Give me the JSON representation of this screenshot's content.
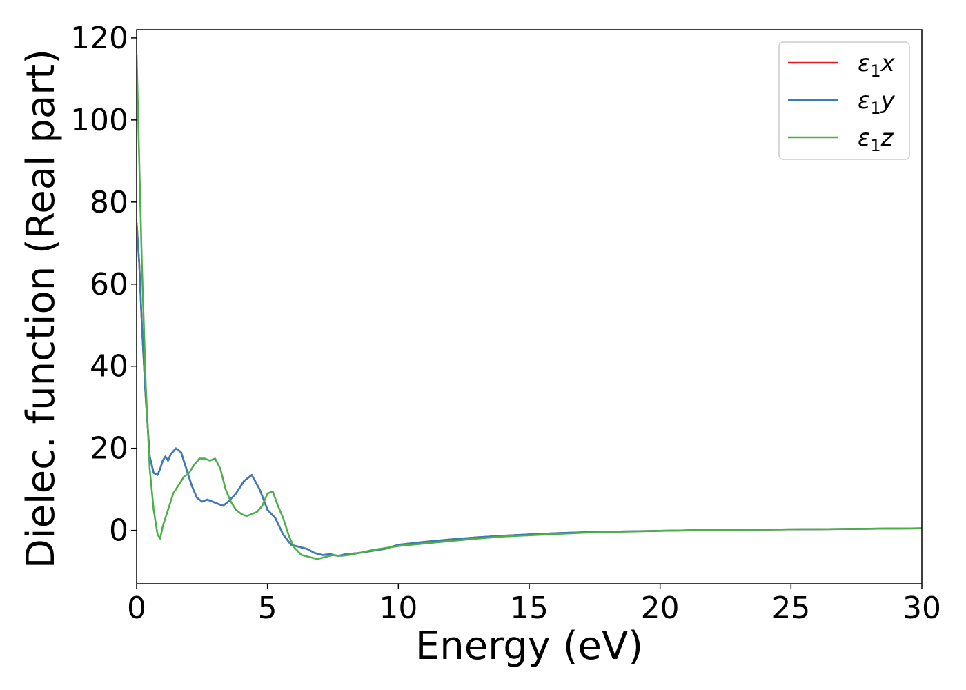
{
  "chart_data": {
    "type": "line",
    "title": "",
    "xlabel": "Energy (eV)",
    "ylabel": "Dielec. function (Real part)",
    "xlim": [
      0,
      30
    ],
    "ylim": [
      -13,
      122
    ],
    "xticks": [
      0,
      5,
      10,
      15,
      20,
      25,
      30
    ],
    "yticks": [
      0,
      20,
      40,
      60,
      80,
      100,
      120
    ],
    "grid": false,
    "legend_position": "top-right",
    "series": [
      {
        "name": "ε1x",
        "legend_base": "ε",
        "legend_sub": "1",
        "legend_var": "x",
        "color": "#e41a1c",
        "x": [
          0,
          0.1,
          0.2,
          0.35,
          0.5,
          0.65,
          0.8,
          0.9,
          1.0,
          1.1,
          1.2,
          1.3,
          1.5,
          1.7,
          1.9,
          2.1,
          2.3,
          2.5,
          2.7,
          2.9,
          3.1,
          3.3,
          3.5,
          3.8,
          4.1,
          4.4,
          4.7,
          5.0,
          5.3,
          5.6,
          5.9,
          6.2,
          6.5,
          6.8,
          7.1,
          7.4,
          7.7,
          8.0,
          8.5,
          9.0,
          9.5,
          10.0,
          11.0,
          12.0,
          13.0,
          14.0,
          15.0,
          16.0,
          17.0,
          18.0,
          20.0,
          22.0,
          24.0,
          26.0,
          28.0,
          30.0
        ],
        "y": [
          75,
          65,
          50,
          32,
          18,
          14,
          13.5,
          15,
          17,
          18,
          17,
          18.5,
          20,
          19,
          15,
          11,
          8,
          7,
          7.5,
          7,
          6.5,
          6,
          7,
          9,
          12,
          13.5,
          10,
          5,
          3,
          -1,
          -3.5,
          -4,
          -4.5,
          -5.5,
          -6,
          -5.8,
          -6.2,
          -5.8,
          -5.5,
          -5,
          -4.5,
          -3.5,
          -2.8,
          -2.2,
          -1.7,
          -1.3,
          -1.0,
          -0.7,
          -0.5,
          -0.3,
          -0.1,
          0.1,
          0.2,
          0.3,
          0.4,
          0.5
        ]
      },
      {
        "name": "ε1y",
        "legend_base": "ε",
        "legend_sub": "1",
        "legend_var": "y",
        "color": "#377eb8",
        "x": [
          0,
          0.1,
          0.2,
          0.35,
          0.5,
          0.65,
          0.8,
          0.9,
          1.0,
          1.1,
          1.2,
          1.3,
          1.5,
          1.7,
          1.9,
          2.1,
          2.3,
          2.5,
          2.7,
          2.9,
          3.1,
          3.3,
          3.5,
          3.8,
          4.1,
          4.4,
          4.7,
          5.0,
          5.3,
          5.6,
          5.9,
          6.2,
          6.5,
          6.8,
          7.1,
          7.4,
          7.7,
          8.0,
          8.5,
          9.0,
          9.5,
          10.0,
          11.0,
          12.0,
          13.0,
          14.0,
          15.0,
          16.0,
          17.0,
          18.0,
          20.0,
          22.0,
          24.0,
          26.0,
          28.0,
          30.0
        ],
        "y": [
          75,
          65,
          50,
          32,
          18,
          14,
          13.5,
          15,
          17,
          18,
          17,
          18.5,
          20,
          19,
          15,
          11,
          8,
          7,
          7.5,
          7,
          6.5,
          6,
          7,
          9,
          12,
          13.5,
          10,
          5,
          3,
          -1,
          -3.5,
          -4,
          -4.5,
          -5.5,
          -6,
          -5.8,
          -6.2,
          -5.8,
          -5.5,
          -5,
          -4.5,
          -3.5,
          -2.8,
          -2.2,
          -1.7,
          -1.3,
          -1.0,
          -0.7,
          -0.5,
          -0.3,
          -0.1,
          0.1,
          0.2,
          0.3,
          0.4,
          0.5
        ]
      },
      {
        "name": "ε1z",
        "legend_base": "ε",
        "legend_sub": "1",
        "legend_var": "z",
        "color": "#4daf4a",
        "x": [
          0,
          0.1,
          0.2,
          0.35,
          0.5,
          0.65,
          0.8,
          0.9,
          1.0,
          1.2,
          1.4,
          1.6,
          1.8,
          2.0,
          2.2,
          2.4,
          2.6,
          2.8,
          3.0,
          3.2,
          3.4,
          3.6,
          3.8,
          4.0,
          4.2,
          4.4,
          4.6,
          4.8,
          5.0,
          5.2,
          5.4,
          5.6,
          5.8,
          6.0,
          6.3,
          6.6,
          6.9,
          7.2,
          7.5,
          7.8,
          8.1,
          8.5,
          9.0,
          9.5,
          10.0,
          11.0,
          12.0,
          13.0,
          14.0,
          15.0,
          16.0,
          17.0,
          18.0,
          20.0,
          22.0,
          24.0,
          26.0,
          28.0,
          30.0
        ],
        "y": [
          116,
          90,
          65,
          35,
          15,
          5,
          -1,
          -2,
          1,
          5,
          9,
          11,
          13,
          14,
          16,
          17.5,
          17.5,
          17,
          17.5,
          15,
          10,
          7,
          5,
          4,
          3.5,
          4,
          4.5,
          6,
          9,
          9.5,
          6,
          3,
          -1,
          -4,
          -6,
          -6.5,
          -7,
          -6.5,
          -6,
          -6.2,
          -6,
          -5.5,
          -4.8,
          -4.3,
          -3.8,
          -3.2,
          -2.6,
          -2.0,
          -1.5,
          -1.2,
          -0.9,
          -0.6,
          -0.4,
          -0.1,
          0.1,
          0.2,
          0.3,
          0.4,
          0.5
        ]
      }
    ]
  }
}
